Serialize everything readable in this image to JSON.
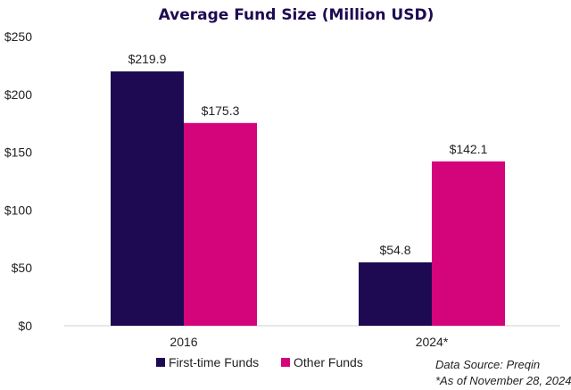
{
  "chart_data": {
    "type": "bar",
    "title": "Average Fund Size (Million USD)",
    "categories": [
      "2016",
      "2024*"
    ],
    "series": [
      {
        "name": "First-time Funds",
        "values": [
          219.9,
          54.8
        ],
        "color": "#1e0a52"
      },
      {
        "name": "Other Funds",
        "values": [
          175.3,
          142.1
        ],
        "color": "#d4057a"
      }
    ],
    "data_labels": [
      [
        "$219.9",
        "$54.8"
      ],
      [
        "$175.3",
        "$142.1"
      ]
    ],
    "ylim": [
      0,
      250
    ],
    "yticks": [
      0,
      50,
      100,
      150,
      200,
      250
    ],
    "ytick_labels": [
      "$0",
      "$50",
      "$100",
      "$150",
      "$200",
      "$250"
    ],
    "xlabel": "",
    "ylabel": "",
    "grid": false,
    "legend_position": "bottom",
    "title_color": "#1e0a52"
  },
  "notes": {
    "source": "Data Source: Preqin",
    "asof": "*As of November 28, 2024"
  }
}
